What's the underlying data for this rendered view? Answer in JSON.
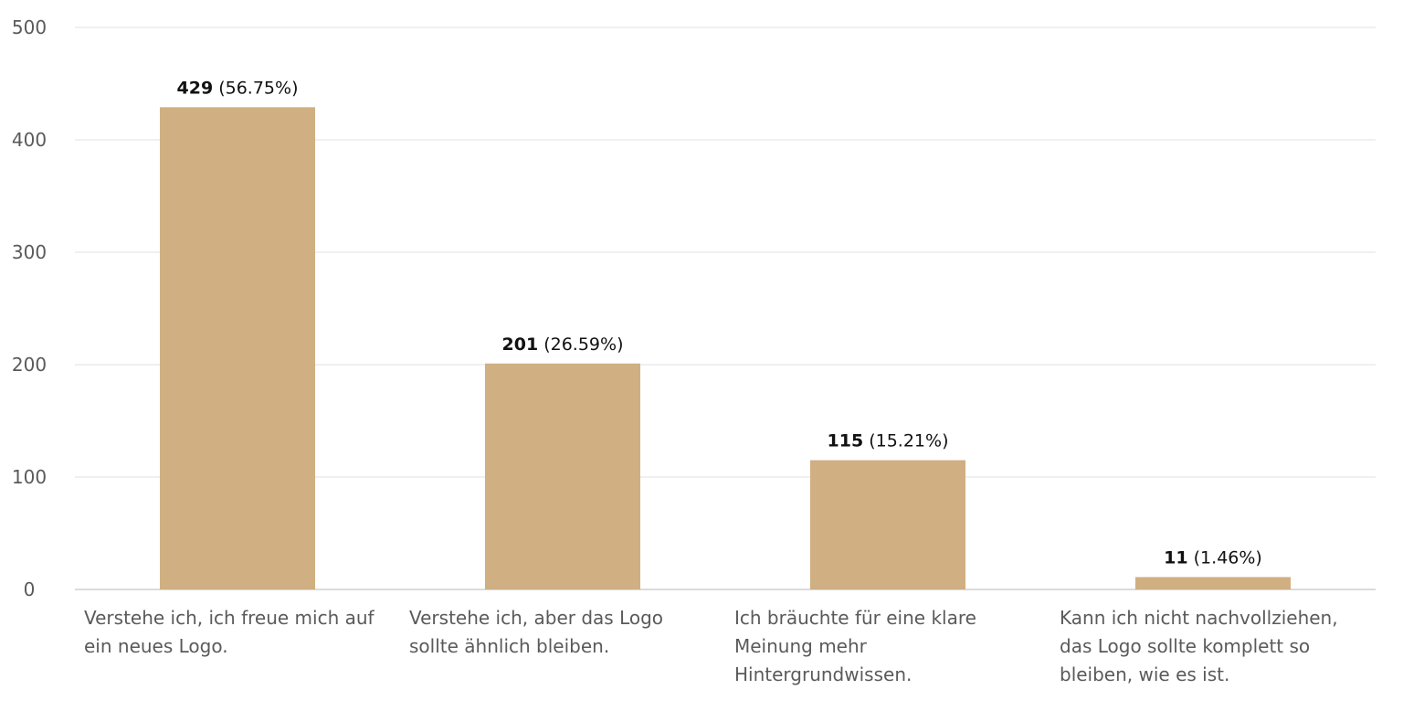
{
  "chart_data": {
    "type": "bar",
    "categories": [
      [
        "Verstehe ich, ich freue mich auf",
        "ein neues Logo."
      ],
      [
        "Verstehe ich, aber das Logo",
        "sollte ähnlich bleiben."
      ],
      [
        "Ich bräuchte für eine klare",
        "Meinung mehr",
        "Hintergrundwissen."
      ],
      [
        "Kann ich nicht nachvollziehen,",
        "das Logo sollte komplett so",
        "bleiben, wie es ist."
      ]
    ],
    "values": [
      429,
      201,
      115,
      11
    ],
    "data_labels": [
      {
        "count": "429",
        "percent": "(56.75%)"
      },
      {
        "count": "201",
        "percent": "(26.59%)"
      },
      {
        "count": "115",
        "percent": "(15.21%)"
      },
      {
        "count": "11",
        "percent": "(1.46%)"
      }
    ],
    "ylim": [
      0,
      500
    ],
    "yticks": [
      0,
      100,
      200,
      300,
      400,
      500
    ],
    "grid": true,
    "legend": "none",
    "colors": {
      "bar": "#d0af82",
      "grid": "#e2e2e2",
      "axis": "#cfcfcf",
      "tick_text": "#5a5a5a",
      "label_text": "#111111"
    }
  }
}
